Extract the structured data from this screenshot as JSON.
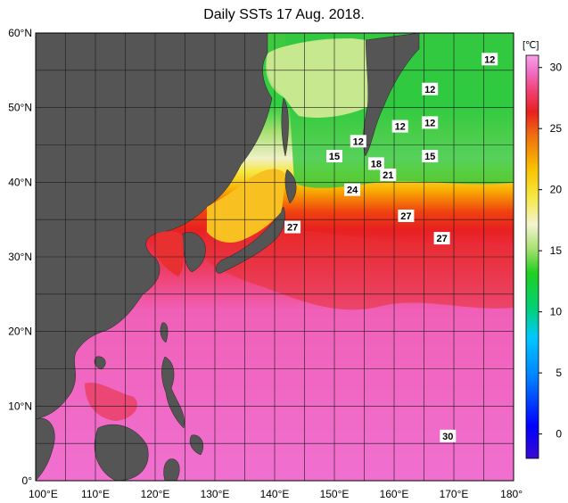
{
  "title": "Daily SSTs 17 Aug. 2018.",
  "unit_label": "[℃]",
  "map": {
    "lon_range": [
      100,
      180
    ],
    "lat_range": [
      0,
      60
    ],
    "lon_ticks": [
      "100°E",
      "110°E",
      "120°E",
      "130°E",
      "140°E",
      "150°E",
      "160°E",
      "170°E",
      "180°"
    ],
    "lat_ticks": [
      "0°",
      "10°N",
      "20°N",
      "30°N",
      "40°N",
      "50°N",
      "60°N"
    ],
    "colors": {
      "land": "#555555",
      "frame": "#000000",
      "grid": "#1a1a1a"
    }
  },
  "colorbar": {
    "ticks": [
      "0",
      "5",
      "10",
      "15",
      "20",
      "25",
      "30"
    ],
    "tick_values": [
      0,
      5,
      10,
      15,
      20,
      25,
      30
    ],
    "range": [
      -2,
      31
    ]
  },
  "contour_labels": [
    {
      "text": "12",
      "lon": 176,
      "lat": 56.5
    },
    {
      "text": "12",
      "lon": 166,
      "lat": 52.5
    },
    {
      "text": "12",
      "lon": 161,
      "lat": 47.5
    },
    {
      "text": "12",
      "lon": 166,
      "lat": 48
    },
    {
      "text": "12",
      "lon": 154,
      "lat": 45.5
    },
    {
      "text": "15",
      "lon": 150,
      "lat": 43.5
    },
    {
      "text": "15",
      "lon": 166,
      "lat": 43.5
    },
    {
      "text": "18",
      "lon": 157,
      "lat": 42.5
    },
    {
      "text": "21",
      "lon": 159,
      "lat": 41
    },
    {
      "text": "24",
      "lon": 153,
      "lat": 39
    },
    {
      "text": "27",
      "lon": 162,
      "lat": 35.5
    },
    {
      "text": "27",
      "lon": 143,
      "lat": 34
    },
    {
      "text": "27",
      "lon": 168,
      "lat": 32.5
    },
    {
      "text": "30",
      "lon": 169,
      "lat": 6
    }
  ]
}
